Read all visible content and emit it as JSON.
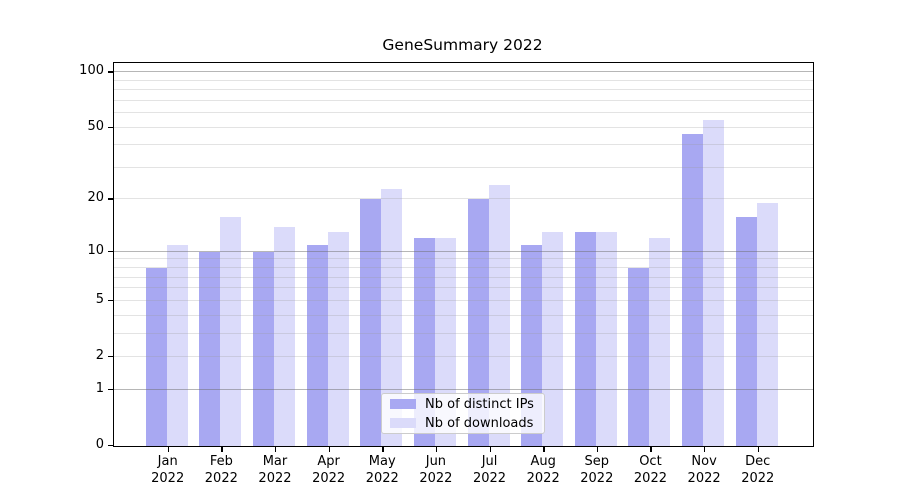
{
  "figure": {
    "title": "GeneSummary 2022",
    "background_color": "#ffffff"
  },
  "chart_data": {
    "type": "bar",
    "title": "GeneSummary 2022",
    "categories": [
      "Jan",
      "Feb",
      "Mar",
      "Apr",
      "May",
      "Jun",
      "Jul",
      "Aug",
      "Sep",
      "Oct",
      "Nov",
      "Dec"
    ],
    "x_year_label": "2022",
    "series": [
      {
        "name": "Nb of distinct IPs",
        "color": "#a8a8f2",
        "values": [
          8,
          10,
          10,
          11,
          20,
          12,
          20,
          11,
          13,
          8,
          46,
          16
        ]
      },
      {
        "name": "Nb of downloads",
        "color": "#dbdbfa",
        "values": [
          11,
          16,
          14,
          13,
          23,
          12,
          24,
          13,
          13,
          12,
          55,
          19
        ]
      }
    ],
    "xlabel": "",
    "ylabel": "",
    "y_scale": "log1p",
    "ylim": [
      0,
      110
    ],
    "y_tick_values": [
      100,
      50,
      20,
      10,
      5,
      2,
      1,
      0
    ],
    "y_tick_labels": [
      "100",
      "50",
      "20",
      "10",
      "5",
      "2",
      "1",
      "0"
    ],
    "grid": "on",
    "grid_minor_values": [
      2,
      3,
      4,
      5,
      6,
      7,
      8,
      9,
      20,
      30,
      40,
      50,
      60,
      70,
      80,
      90
    ],
    "grid_major_values": [
      1,
      10,
      100
    ],
    "legend_position": "bottom-center",
    "colors": {
      "axis": "#000000",
      "grid_minor": "#e4e4e4",
      "grid_major": "#a8a8a8",
      "legend_border": "#cccccc",
      "legend_background": "#ffffff"
    }
  }
}
